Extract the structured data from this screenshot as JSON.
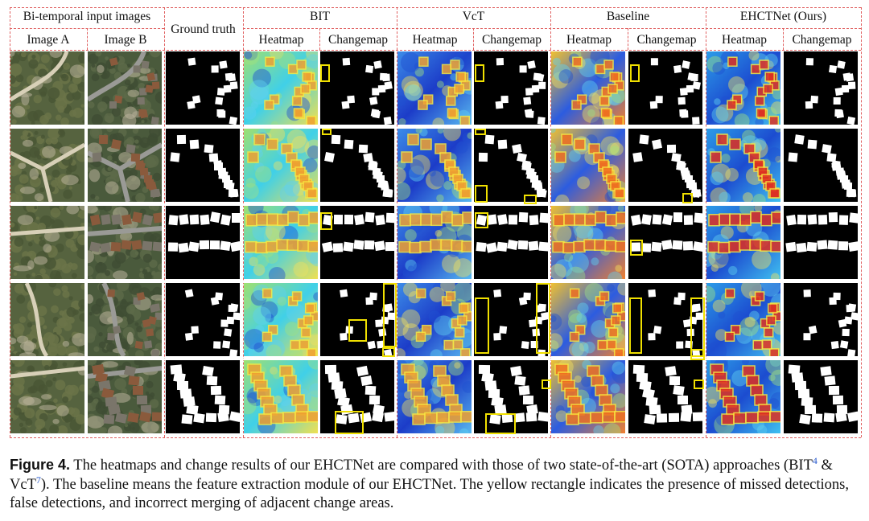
{
  "headers": {
    "input_group": "Bi-temporal input images",
    "image_a": "Image A",
    "image_b": "Image B",
    "ground_truth": "Ground truth",
    "methods": [
      "BIT",
      "VcT",
      "Baseline",
      "EHCTNet (Ours)"
    ],
    "heatmap": "Heatmap",
    "changemap": "Changemap"
  },
  "caption": {
    "label": "Figure 4.",
    "text_1": " The heatmaps and change results of our EHCTNet are compared with those of two state-of-the-art (SOTA) approaches (BIT",
    "ref_1": "4",
    "text_2": " & VcT",
    "ref_2": "7",
    "text_3": "). The baseline means the feature extraction module of our EHCTNet. The yellow rectangle indicates the presence of missed detections, false detections, and incorrect merging of adjacent change areas."
  },
  "colors": {
    "grid_dash": "#e06060",
    "marker": "#f0e000",
    "ref_link": "#2255cc"
  },
  "rows": 5,
  "tile_kinds": [
    "image-a",
    "image-b",
    "ground-truth",
    "heatmap",
    "changemap",
    "heatmap",
    "changemap",
    "heatmap",
    "changemap",
    "heatmap",
    "changemap"
  ]
}
